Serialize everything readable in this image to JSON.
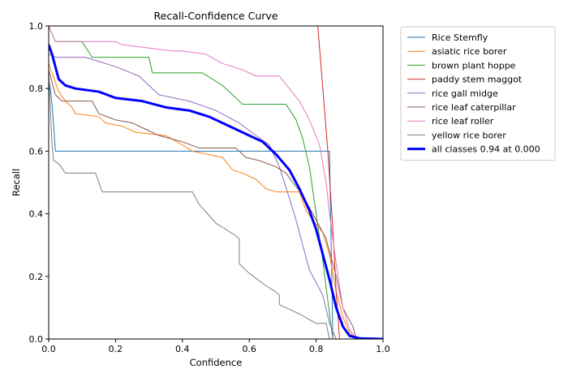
{
  "chart_data": {
    "type": "line",
    "title": "Recall-Confidence Curve",
    "xlabel": "Confidence",
    "ylabel": "Recall",
    "xlim": [
      0,
      1
    ],
    "ylim": [
      0,
      1
    ],
    "x_ticks": [
      "0.0",
      "0.2",
      "0.4",
      "0.6",
      "0.8",
      "1.0"
    ],
    "y_ticks": [
      "0.0",
      "0.2",
      "0.4",
      "0.6",
      "0.8",
      "1.0"
    ],
    "grid": false,
    "legend_position": "outside-right",
    "series": [
      {
        "name": "Rice Stemfly",
        "color": "#1f77b4",
        "width": 1,
        "points": [
          [
            0,
            0.83
          ],
          [
            0.005,
            0.8
          ],
          [
            0.01,
            0.75
          ],
          [
            0.015,
            0.68
          ],
          [
            0.02,
            0.6
          ],
          [
            0.5,
            0.6
          ],
          [
            0.84,
            0.6
          ],
          [
            0.845,
            0.3
          ],
          [
            0.85,
            0.0
          ]
        ]
      },
      {
        "name": "asiatic rice borer",
        "color": "#ff7f0e",
        "width": 1,
        "points": [
          [
            0,
            0.88
          ],
          [
            0.02,
            0.82
          ],
          [
            0.03,
            0.79
          ],
          [
            0.05,
            0.76
          ],
          [
            0.07,
            0.74
          ],
          [
            0.08,
            0.72
          ],
          [
            0.15,
            0.71
          ],
          [
            0.17,
            0.69
          ],
          [
            0.22,
            0.68
          ],
          [
            0.26,
            0.66
          ],
          [
            0.35,
            0.65
          ],
          [
            0.4,
            0.62
          ],
          [
            0.43,
            0.6
          ],
          [
            0.52,
            0.58
          ],
          [
            0.55,
            0.54
          ],
          [
            0.58,
            0.53
          ],
          [
            0.62,
            0.51
          ],
          [
            0.65,
            0.48
          ],
          [
            0.68,
            0.47
          ],
          [
            0.75,
            0.47
          ],
          [
            0.77,
            0.41
          ],
          [
            0.79,
            0.38
          ],
          [
            0.82,
            0.34
          ],
          [
            0.84,
            0.27
          ],
          [
            0.86,
            0.15
          ],
          [
            0.88,
            0.07
          ],
          [
            0.9,
            0.02
          ],
          [
            0.92,
            0.0
          ]
        ]
      },
      {
        "name": "brown plant hoppe",
        "color": "#2ca02c",
        "width": 1,
        "points": [
          [
            0,
            1.0
          ],
          [
            0.02,
            0.95
          ],
          [
            0.1,
            0.95
          ],
          [
            0.13,
            0.9
          ],
          [
            0.3,
            0.9
          ],
          [
            0.31,
            0.85
          ],
          [
            0.46,
            0.85
          ],
          [
            0.52,
            0.81
          ],
          [
            0.58,
            0.75
          ],
          [
            0.71,
            0.75
          ],
          [
            0.74,
            0.7
          ],
          [
            0.76,
            0.64
          ],
          [
            0.78,
            0.55
          ],
          [
            0.8,
            0.4
          ],
          [
            0.82,
            0.25
          ],
          [
            0.84,
            0.08
          ],
          [
            0.85,
            0.0
          ]
        ]
      },
      {
        "name": "paddy stem maggot",
        "color": "#d62728",
        "width": 1,
        "points": [
          [
            0.805,
            1.0
          ],
          [
            0.82,
            0.8
          ],
          [
            0.835,
            0.6
          ],
          [
            0.85,
            0.35
          ],
          [
            0.86,
            0.15
          ],
          [
            0.87,
            0.0
          ]
        ]
      },
      {
        "name": "rice gall midge",
        "color": "#9467bd",
        "width": 1,
        "points": [
          [
            0,
            0.91
          ],
          [
            0.02,
            0.9
          ],
          [
            0.11,
            0.9
          ],
          [
            0.2,
            0.87
          ],
          [
            0.27,
            0.84
          ],
          [
            0.33,
            0.78
          ],
          [
            0.42,
            0.76
          ],
          [
            0.5,
            0.73
          ],
          [
            0.57,
            0.69
          ],
          [
            0.62,
            0.65
          ],
          [
            0.66,
            0.62
          ],
          [
            0.69,
            0.55
          ],
          [
            0.72,
            0.45
          ],
          [
            0.74,
            0.38
          ],
          [
            0.76,
            0.3
          ],
          [
            0.78,
            0.22
          ],
          [
            0.8,
            0.18
          ],
          [
            0.82,
            0.14
          ],
          [
            0.84,
            0.05
          ],
          [
            0.86,
            0.0
          ]
        ]
      },
      {
        "name": "rice leaf caterpillar",
        "color": "#8c564b",
        "width": 1,
        "points": [
          [
            0,
            0.86
          ],
          [
            0.02,
            0.78
          ],
          [
            0.04,
            0.76
          ],
          [
            0.13,
            0.76
          ],
          [
            0.15,
            0.72
          ],
          [
            0.2,
            0.7
          ],
          [
            0.25,
            0.69
          ],
          [
            0.29,
            0.67
          ],
          [
            0.33,
            0.65
          ],
          [
            0.4,
            0.63
          ],
          [
            0.45,
            0.61
          ],
          [
            0.56,
            0.61
          ],
          [
            0.59,
            0.58
          ],
          [
            0.63,
            0.57
          ],
          [
            0.68,
            0.55
          ],
          [
            0.71,
            0.53
          ],
          [
            0.73,
            0.5
          ],
          [
            0.76,
            0.46
          ],
          [
            0.79,
            0.4
          ],
          [
            0.83,
            0.32
          ],
          [
            0.86,
            0.2
          ],
          [
            0.88,
            0.1
          ],
          [
            0.91,
            0.04
          ],
          [
            0.92,
            0.0
          ]
        ]
      },
      {
        "name": "rice leaf roller",
        "color": "#e377c2",
        "width": 1,
        "points": [
          [
            0,
            1.0
          ],
          [
            0.02,
            0.95
          ],
          [
            0.2,
            0.95
          ],
          [
            0.22,
            0.94
          ],
          [
            0.37,
            0.92
          ],
          [
            0.4,
            0.92
          ],
          [
            0.47,
            0.91
          ],
          [
            0.52,
            0.88
          ],
          [
            0.58,
            0.86
          ],
          [
            0.62,
            0.84
          ],
          [
            0.69,
            0.84
          ],
          [
            0.72,
            0.8
          ],
          [
            0.75,
            0.76
          ],
          [
            0.78,
            0.7
          ],
          [
            0.81,
            0.62
          ],
          [
            0.83,
            0.5
          ],
          [
            0.84,
            0.4
          ],
          [
            0.86,
            0.24
          ],
          [
            0.88,
            0.1
          ],
          [
            0.9,
            0.03
          ],
          [
            0.92,
            0.0
          ]
        ]
      },
      {
        "name": "yellow rice borer",
        "color": "#7f7f7f",
        "width": 1,
        "points": [
          [
            0,
            0.85
          ],
          [
            0.01,
            0.62
          ],
          [
            0.015,
            0.57
          ],
          [
            0.03,
            0.56
          ],
          [
            0.05,
            0.53
          ],
          [
            0.14,
            0.53
          ],
          [
            0.16,
            0.47
          ],
          [
            0.43,
            0.47
          ],
          [
            0.45,
            0.43
          ],
          [
            0.5,
            0.37
          ],
          [
            0.56,
            0.33
          ],
          [
            0.57,
            0.32
          ],
          [
            0.57,
            0.24
          ],
          [
            0.6,
            0.21
          ],
          [
            0.65,
            0.17
          ],
          [
            0.68,
            0.15
          ],
          [
            0.69,
            0.14
          ],
          [
            0.69,
            0.11
          ],
          [
            0.71,
            0.1
          ],
          [
            0.75,
            0.08
          ],
          [
            0.8,
            0.05
          ],
          [
            0.83,
            0.05
          ],
          [
            0.84,
            0.0
          ]
        ]
      },
      {
        "name": "all classes 0.94 at 0.000",
        "color": "#0000ff",
        "width": 3,
        "points": [
          [
            0,
            0.94
          ],
          [
            0.01,
            0.91
          ],
          [
            0.02,
            0.87
          ],
          [
            0.03,
            0.83
          ],
          [
            0.05,
            0.81
          ],
          [
            0.08,
            0.8
          ],
          [
            0.15,
            0.79
          ],
          [
            0.2,
            0.77
          ],
          [
            0.28,
            0.76
          ],
          [
            0.35,
            0.74
          ],
          [
            0.42,
            0.73
          ],
          [
            0.48,
            0.71
          ],
          [
            0.54,
            0.68
          ],
          [
            0.6,
            0.65
          ],
          [
            0.64,
            0.63
          ],
          [
            0.68,
            0.59
          ],
          [
            0.72,
            0.54
          ],
          [
            0.75,
            0.48
          ],
          [
            0.78,
            0.41
          ],
          [
            0.8,
            0.35
          ],
          [
            0.82,
            0.27
          ],
          [
            0.84,
            0.19
          ],
          [
            0.86,
            0.1
          ],
          [
            0.88,
            0.04
          ],
          [
            0.9,
            0.01
          ],
          [
            0.93,
            0.002
          ],
          [
            1.0,
            0.0
          ]
        ]
      }
    ]
  }
}
